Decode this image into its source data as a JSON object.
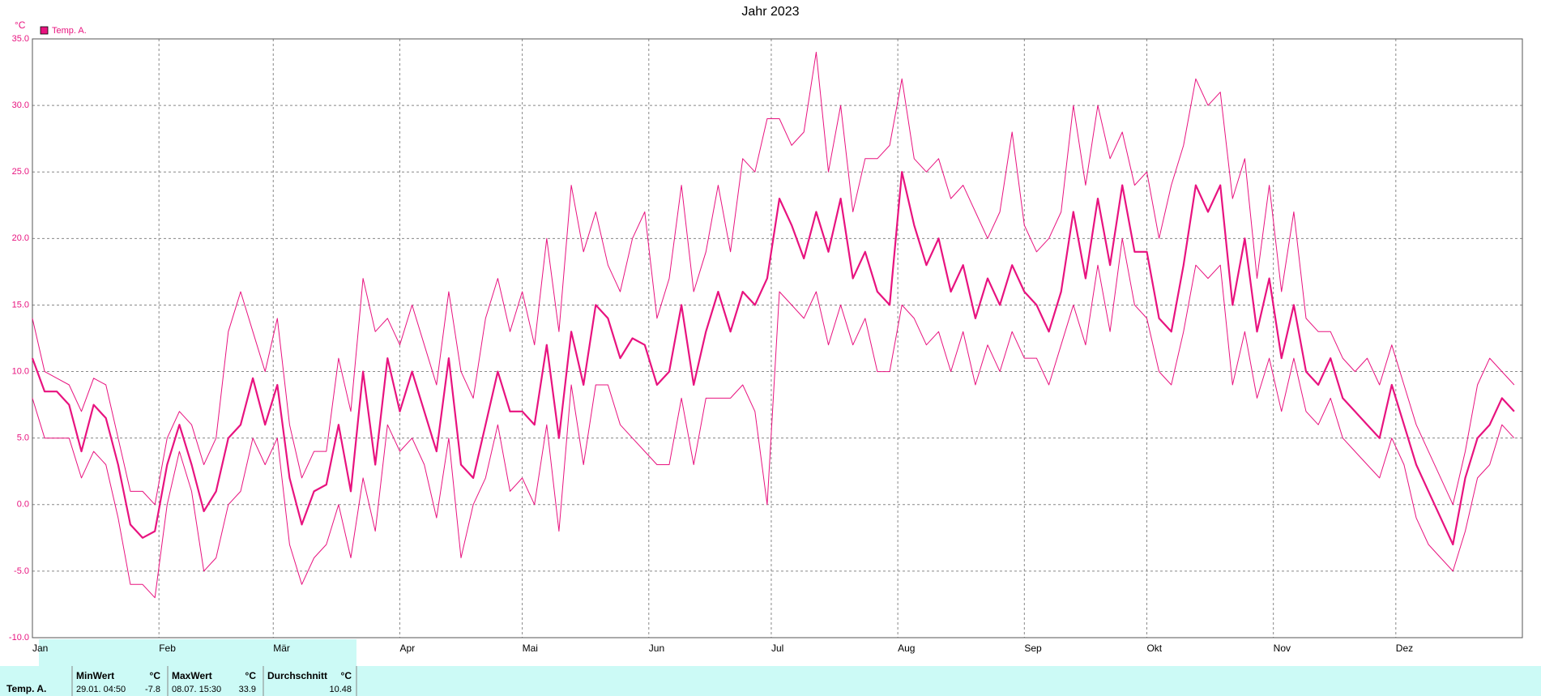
{
  "chart_data": {
    "type": "line",
    "title": "Jahr 2023",
    "ylabel": "°C",
    "xlim": [
      0,
      365
    ],
    "xticks": [
      {
        "value": 0,
        "label": "Jan"
      },
      {
        "value": 31,
        "label": "Feb"
      },
      {
        "value": 59,
        "label": "Mär"
      },
      {
        "value": 90,
        "label": "Apr"
      },
      {
        "value": 120,
        "label": "Mai"
      },
      {
        "value": 151,
        "label": "Jun"
      },
      {
        "value": 181,
        "label": "Jul"
      },
      {
        "value": 212,
        "label": "Aug"
      },
      {
        "value": 243,
        "label": "Sep"
      },
      {
        "value": 273,
        "label": "Okt"
      },
      {
        "value": 304,
        "label": "Nov"
      },
      {
        "value": 334,
        "label": "Dez"
      }
    ],
    "ylim": [
      -10,
      35
    ],
    "yticks": [
      {
        "value": -10,
        "label": "-10.0"
      },
      {
        "value": -5,
        "label": "-5.0"
      },
      {
        "value": 0,
        "label": "0.0"
      },
      {
        "value": 5,
        "label": "5.0"
      },
      {
        "value": 10,
        "label": "10.0"
      },
      {
        "value": 15,
        "label": "15.0"
      },
      {
        "value": 20,
        "label": "20.0"
      },
      {
        "value": 25,
        "label": "25.0"
      },
      {
        "value": 30,
        "label": "30.0"
      },
      {
        "value": 35,
        "label": "35.0"
      }
    ],
    "grid": true,
    "legend": "top-left",
    "x": [
      0,
      3,
      6,
      9,
      12,
      15,
      18,
      21,
      24,
      27,
      30,
      33,
      36,
      39,
      42,
      45,
      48,
      51,
      54,
      57,
      60,
      63,
      66,
      69,
      72,
      75,
      78,
      81,
      84,
      87,
      90,
      93,
      96,
      99,
      102,
      105,
      108,
      111,
      114,
      117,
      120,
      123,
      126,
      129,
      132,
      135,
      138,
      141,
      144,
      147,
      150,
      153,
      156,
      159,
      162,
      165,
      168,
      171,
      174,
      177,
      180,
      183,
      186,
      189,
      192,
      195,
      198,
      201,
      204,
      207,
      210,
      213,
      216,
      219,
      222,
      225,
      228,
      231,
      234,
      237,
      240,
      243,
      246,
      249,
      252,
      255,
      258,
      261,
      264,
      267,
      270,
      273,
      276,
      279,
      282,
      285,
      288,
      291,
      294,
      297,
      300,
      303,
      306,
      309,
      312,
      315,
      318,
      321,
      324,
      327,
      330,
      333,
      336,
      339,
      342,
      345,
      348,
      351,
      354,
      357,
      360,
      363
    ],
    "series": [
      {
        "name": "Temp. A.",
        "color": "#e8137f",
        "values": [
          11,
          8.5,
          8.5,
          7.5,
          4,
          7.5,
          6.5,
          3,
          -1.5,
          -2.5,
          -2,
          3,
          6,
          3,
          -0.5,
          1,
          5,
          6,
          9.5,
          6,
          9,
          2,
          -1.5,
          1,
          1.5,
          6,
          1,
          10,
          3,
          11,
          7,
          10,
          7,
          4,
          11,
          3,
          2,
          6,
          10,
          7,
          7,
          6,
          12,
          5,
          13,
          9,
          15,
          14,
          11,
          12.5,
          12,
          9,
          10,
          15,
          9,
          13,
          16,
          13,
          16,
          15,
          17,
          23,
          21,
          18.5,
          22,
          19,
          23,
          17,
          19,
          16,
          15,
          25,
          21,
          18,
          20,
          16,
          18,
          14,
          17,
          15,
          18,
          16,
          15,
          13,
          16,
          22,
          17,
          23,
          18,
          24,
          19,
          19,
          14,
          13,
          18,
          24,
          22,
          24,
          15,
          20,
          13,
          17,
          11,
          15,
          10,
          9,
          11,
          8,
          7,
          6,
          5,
          9,
          6,
          3,
          1,
          -1,
          -3,
          2,
          5,
          6,
          8,
          7
        ],
        "high": [
          14,
          10,
          9.5,
          9,
          7,
          9.5,
          9,
          5,
          1,
          1,
          0,
          5,
          7,
          6,
          3,
          5,
          13,
          16,
          13,
          10,
          14,
          6,
          2,
          4,
          4,
          11,
          7,
          17,
          13,
          14,
          12,
          15,
          12,
          9,
          16,
          10,
          8,
          14,
          17,
          13,
          16,
          12,
          20,
          13,
          24,
          19,
          22,
          18,
          16,
          20,
          22,
          14,
          17,
          24,
          16,
          19,
          24,
          19,
          26,
          25,
          29,
          29,
          27,
          28,
          34,
          25,
          30,
          22,
          26,
          26,
          27,
          32,
          26,
          25,
          26,
          23,
          24,
          22,
          20,
          22,
          28,
          21,
          19,
          20,
          22,
          30,
          24,
          30,
          26,
          28,
          24,
          25,
          20,
          24,
          27,
          32,
          30,
          31,
          23,
          26,
          17,
          24,
          16,
          22,
          14,
          13,
          13,
          11,
          10,
          11,
          9,
          12,
          9,
          6,
          4,
          2,
          0,
          4,
          9,
          11,
          10,
          9
        ],
        "low": [
          8,
          5,
          5,
          5,
          2,
          4,
          3,
          -1,
          -6,
          -6,
          -7,
          0,
          4,
          1,
          -5,
          -4,
          0,
          1,
          5,
          3,
          5,
          -3,
          -6,
          -4,
          -3,
          0,
          -4,
          2,
          -2,
          6,
          4,
          5,
          3,
          -1,
          5,
          -4,
          0,
          2,
          6,
          1,
          2,
          0,
          6,
          -2,
          9,
          3,
          9,
          9,
          6,
          5,
          4,
          3,
          3,
          8,
          3,
          8,
          8,
          8,
          9,
          7,
          0,
          16,
          15,
          14,
          16,
          12,
          15,
          12,
          14,
          10,
          10,
          15,
          14,
          12,
          13,
          10,
          13,
          9,
          12,
          10,
          13,
          11,
          11,
          9,
          12,
          15,
          12,
          18,
          13,
          20,
          15,
          14,
          10,
          9,
          13,
          18,
          17,
          18,
          9,
          13,
          8,
          11,
          7,
          11,
          7,
          6,
          8,
          5,
          4,
          3,
          2,
          5,
          3,
          -1,
          -3,
          -4,
          -5,
          -2,
          2,
          3,
          6,
          5
        ]
      }
    ]
  },
  "summary": {
    "name": "Temp. A.",
    "min": {
      "header": "MinWert",
      "unit": "°C",
      "time": "29.01.  04:50",
      "value": -7.8
    },
    "max": {
      "header": "MaxWert",
      "unit": "°C",
      "time": "08.07.  15:30",
      "value": 33.9
    },
    "avg": {
      "header": "Durchschnitt",
      "unit": "°C",
      "value": 10.48
    }
  }
}
